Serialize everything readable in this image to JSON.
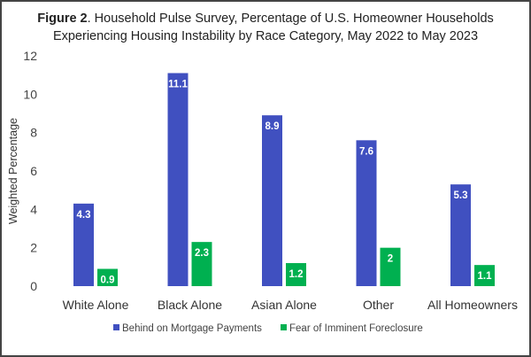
{
  "chart_data": {
    "type": "bar",
    "title_bold": "Figure 2",
    "title_rest": ". Household Pulse Survey, Percentage of U.S. Homeowner Households",
    "title_line2": "Experiencing Housing Instability by Race Category, May 2022 to May 2023",
    "xlabel": "",
    "ylabel": "Weighted Percentage",
    "ylim": [
      0,
      12
    ],
    "yticks": [
      0,
      2,
      4,
      6,
      8,
      10,
      12
    ],
    "grid": false,
    "legend_position": "bottom",
    "categories": [
      "White Alone",
      "Black Alone",
      "Asian Alone",
      "Other",
      "All Homeowners"
    ],
    "series": [
      {
        "name": "Behind on Mortgage Payments",
        "color": "#4050C0",
        "values": [
          4.3,
          11.1,
          8.9,
          7.6,
          5.3
        ],
        "labels": [
          "4.3",
          "11.1",
          "8.9",
          "7.6",
          "5.3"
        ]
      },
      {
        "name": "Fear of Imminent Foreclosure",
        "color": "#00B050",
        "values": [
          0.9,
          2.3,
          1.2,
          2,
          1.1
        ],
        "labels": [
          "0.9",
          "2.3",
          "1.2",
          "2",
          "1.1"
        ]
      }
    ]
  }
}
